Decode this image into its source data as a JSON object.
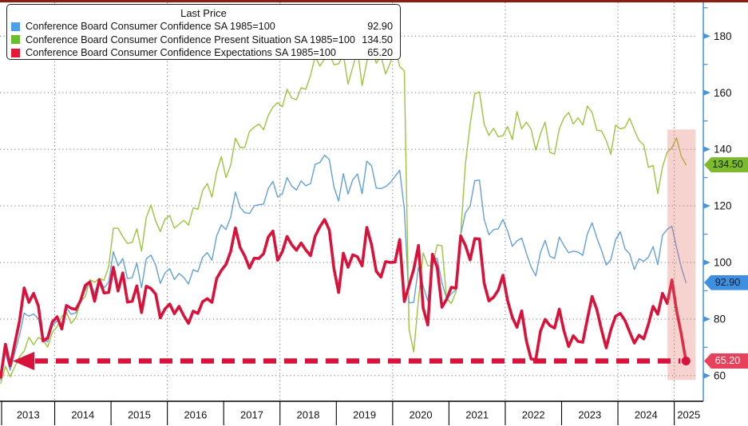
{
  "top_bar_color": "#8b1f15",
  "legend": {
    "title": "Last Price",
    "items": [
      {
        "label": "Conference Board Consumer Confidence SA 1985=100",
        "value": "92.90",
        "color": "#4da0e8"
      },
      {
        "label": "Conference Board Consumer Confidence Present Situation SA 1985=100",
        "value": "134.50",
        "color": "#6abe2d"
      },
      {
        "label": "Conference Board Consumer Confidence Expectations SA 1985=100",
        "value": "65.20",
        "color": "#e51937"
      }
    ]
  },
  "y_axis": {
    "axis_color": "#4a94d8",
    "label_color": "#111111",
    "major_ticks": [
      60,
      80,
      100,
      120,
      140,
      160,
      180
    ],
    "minor_ticks": [
      70,
      90,
      110,
      130,
      150,
      170,
      190
    ],
    "badges": [
      {
        "label": "134.50",
        "value": 134.5,
        "color": "#7dbb2d",
        "text_color": "#0d2300"
      },
      {
        "label": "92.90",
        "value": 92.9,
        "color": "#3f8fe0",
        "text_color": "#06182e"
      },
      {
        "label": "65.20",
        "value": 65.2,
        "color": "#e8415c",
        "text_color": "#ffffff"
      }
    ]
  },
  "x_axis": {
    "years": [
      "2013",
      "2014",
      "2015",
      "2016",
      "2017",
      "2018",
      "2019",
      "2020",
      "2021",
      "2022",
      "2023",
      "2024",
      "2025"
    ],
    "gridline_years": [
      2014,
      2016,
      2018,
      2020,
      2022,
      2024,
      2025
    ],
    "label_color": "#111111"
  },
  "grid": {
    "color": "#767676"
  },
  "chart_data": {
    "type": "line",
    "title": "Last Price",
    "frequency": "monthly",
    "start_month": "2013-01",
    "end_month": "2025-03",
    "ylim": [
      55,
      192
    ],
    "legend_position": "top-left",
    "grid": "dotted, horizontal every 20, vertical every 2 years",
    "series": [
      {
        "name": "Conference Board Consumer Confidence SA 1985=100",
        "color": "#64a0d8",
        "width": 1.4,
        "last_value": 92.9,
        "values": [
          58.6,
          68.0,
          61.9,
          68.1,
          74.3,
          82.1,
          81.0,
          81.8,
          80.2,
          72.4,
          72.0,
          77.5,
          79.4,
          78.3,
          83.9,
          81.7,
          82.2,
          86.4,
          90.3,
          93.4,
          89.0,
          94.1,
          91.0,
          93.1,
          103.8,
          98.8,
          101.4,
          94.3,
          94.6,
          99.8,
          91.0,
          101.3,
          102.6,
          99.1,
          92.6,
          96.3,
          97.8,
          94.0,
          96.1,
          94.7,
          92.4,
          97.4,
          96.7,
          101.8,
          103.5,
          100.8,
          109.4,
          113.3,
          111.6,
          116.1,
          124.9,
          119.4,
          117.6,
          117.3,
          120.0,
          120.4,
          120.6,
          126.2,
          128.6,
          123.1,
          124.3,
          130.0,
          127.0,
          125.6,
          128.8,
          127.1,
          127.9,
          134.7,
          135.3,
          137.9,
          136.4,
          126.6,
          121.7,
          131.4,
          124.2,
          129.2,
          131.3,
          124.3,
          135.8,
          134.2,
          126.3,
          126.1,
          126.8,
          128.2,
          130.4,
          132.6,
          118.8,
          85.7,
          85.9,
          98.3,
          91.7,
          86.3,
          101.3,
          101.4,
          92.9,
          87.1,
          88.9,
          90.4,
          109.7,
          117.5,
          120.0,
          128.9,
          129.1,
          115.2,
          109.8,
          111.6,
          111.9,
          115.2,
          111.1,
          105.7,
          107.6,
          108.6,
          103.2,
          98.4,
          95.3,
          103.6,
          107.8,
          102.2,
          101.4,
          109.0,
          106.0,
          103.4,
          104.0,
          103.7,
          102.5,
          110.1,
          114.0,
          108.7,
          104.3,
          99.1,
          101.0,
          108.0,
          110.9,
          104.8,
          103.1,
          97.5,
          101.3,
          100.4,
          101.9,
          105.6,
          99.2,
          109.6,
          111.7,
          112.8,
          105.3,
          98.3,
          92.9
        ]
      },
      {
        "name": "Conference Board Consumer Confidence Present Situation SA 1985=100",
        "color": "#9cc43e",
        "width": 1.4,
        "last_value": 134.5,
        "values": [
          57.3,
          63.3,
          59.6,
          63.2,
          66.7,
          68.7,
          73.6,
          70.9,
          73.5,
          72.6,
          70.1,
          75.3,
          77.3,
          81.0,
          82.5,
          78.5,
          80.4,
          86.3,
          87.9,
          93.9,
          93.0,
          94.4,
          93.7,
          98.6,
          112.1,
          112.1,
          109.1,
          106.7,
          107.1,
          111.9,
          104.0,
          115.8,
          120.3,
          114.6,
          110.9,
          115.3,
          116.6,
          112.1,
          113.5,
          114.9,
          113.2,
          119.3,
          118.8,
          125.3,
          127.9,
          123.1,
          132.0,
          137.4,
          130.0,
          134.4,
          143.9,
          140.6,
          140.7,
          146.3,
          147.8,
          148.9,
          146.9,
          152.0,
          154.9,
          156.5,
          155.0,
          161.2,
          158.1,
          157.5,
          161.7,
          161.2,
          166.1,
          172.8,
          169.4,
          171.9,
          173.7,
          169.9,
          170.2,
          173.5,
          163.0,
          169.0,
          175.2,
          162.5,
          170.9,
          176.0,
          170.4,
          173.1,
          166.6,
          170.5,
          175.9,
          169.3,
          167.7,
          76.4,
          68.4,
          86.8,
          103.4,
          98.9,
          98.9,
          106.2,
          105.9,
          87.2,
          85.5,
          89.6,
          110.1,
          134.7,
          148.7,
          159.6,
          160.3,
          148.9,
          144.9,
          147.4,
          144.4,
          144.8,
          148.0,
          143.4,
          153.3,
          147.2,
          149.6,
          147.1,
          139.7,
          145.4,
          149.6,
          138.9,
          138.3,
          147.2,
          151.1,
          153.0,
          148.9,
          151.1,
          148.6,
          155.3,
          153.0,
          146.7,
          146.5,
          143.1,
          138.2,
          148.5,
          147.2,
          147.7,
          151.0,
          146.8,
          143.1,
          141.5,
          133.6,
          134.3,
          124.3,
          133.8,
          139.0,
          140.5,
          144.0,
          137.5,
          134.5
        ]
      },
      {
        "name": "Conference Board Consumer Confidence Expectations SA 1985=100",
        "color": "#d8123a",
        "width": 3.6,
        "last_value": 65.2,
        "values": [
          59.5,
          71.1,
          63.4,
          71.4,
          79.4,
          91.0,
          85.9,
          89.1,
          84.7,
          72.3,
          73.3,
          79.0,
          80.8,
          76.5,
          84.8,
          83.8,
          83.4,
          86.5,
          91.9,
          93.1,
          86.3,
          93.9,
          89.2,
          89.4,
          98.3,
          89.9,
          96.3,
          86.0,
          86.3,
          91.7,
          82.3,
          91.6,
          90.8,
          88.8,
          80.4,
          83.6,
          85.3,
          81.9,
          84.5,
          81.2,
          78.5,
          82.8,
          82.0,
          86.1,
          87.2,
          85.9,
          94.3,
          97.2,
          99.3,
          103.9,
          112.2,
          105.3,
          102.2,
          98.0,
          101.5,
          101.4,
          103.1,
          109.0,
          111.1,
          100.8,
          103.8,
          109.2,
          106.3,
          104.3,
          106.9,
          104.4,
          102.4,
          109.3,
          112.6,
          115.2,
          111.5,
          97.7,
          89.4,
          103.3,
          98.3,
          102.7,
          102.0,
          98.8,
          112.4,
          106.3,
          96.9,
          94.8,
          100.3,
          100.0,
          100.1,
          108.1,
          86.2,
          91.9,
          97.6,
          106.0,
          83.9,
          77.9,
          102.9,
          98.2,
          84.2,
          87.0,
          91.2,
          90.9,
          109.4,
          106.0,
          100.9,
          108.4,
          108.3,
          92.7,
          86.4,
          87.7,
          90.2,
          95.5,
          86.5,
          80.6,
          77.1,
          82.9,
          72.3,
          65.9,
          65.7,
          75.7,
          79.9,
          77.7,
          76.8,
          83.5,
          75.9,
          70.3,
          74.1,
          72.1,
          71.8,
          80.0,
          88.0,
          83.4,
          76.2,
          69.8,
          76.2,
          81.0,
          82.0,
          79.5,
          75.5,
          71.5,
          74.3,
          73.0,
          78.2,
          84.5,
          81.7,
          89.1,
          85.5,
          93.8,
          83.0,
          74.8,
          65.2
        ]
      }
    ],
    "annotations": {
      "dashed_level_line": {
        "value": 65.2,
        "color": "#d8123a",
        "style": "thick dashed, left arrowhead at start, dot at end"
      },
      "highlight_band": {
        "from_year": 2024.88,
        "to_year": 2025.38,
        "top_value": 147,
        "bottom_value": 58.5,
        "color": "#e66e64",
        "opacity": 0.3
      }
    }
  }
}
